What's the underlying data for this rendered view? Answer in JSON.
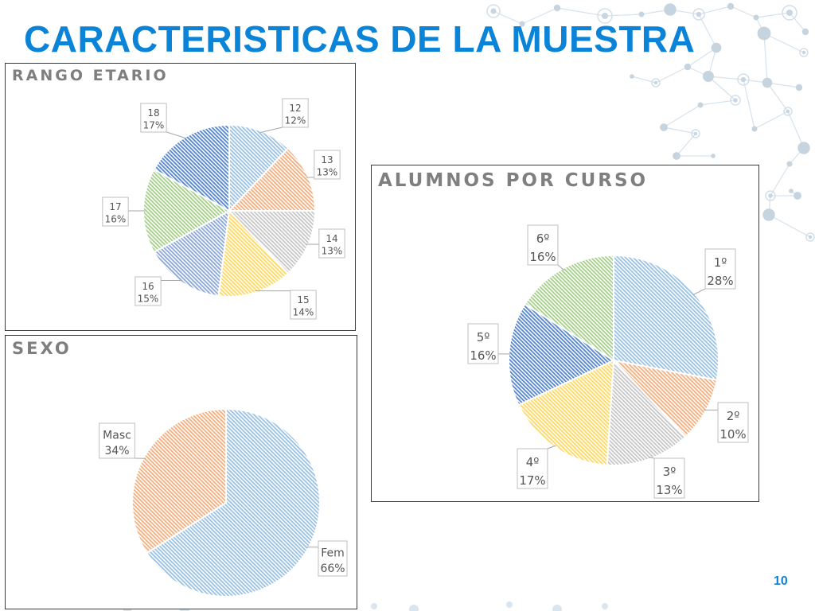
{
  "slide": {
    "title": "CARACTERISTICAS DE LA MUESTRA",
    "page_number": "10"
  },
  "chart_data": [
    {
      "id": "age",
      "type": "pie",
      "title": "RANGO ETARIO",
      "categories": [
        "12",
        "13",
        "14",
        "15",
        "16",
        "17",
        "18"
      ],
      "values": [
        12,
        13,
        13,
        14,
        15,
        16,
        17
      ],
      "value_labels": [
        "12%",
        "13%",
        "13%",
        "14%",
        "15%",
        "16%",
        "17%"
      ],
      "colors": [
        "#9dc3e6",
        "#f4b183",
        "#c9c9c9",
        "#ffd966",
        "#8faadc",
        "#a9d18e",
        "#5b8ad1"
      ],
      "fill": "diagonal-hatch",
      "data_labels": "callout"
    },
    {
      "id": "sex",
      "type": "pie",
      "title": "SEXO",
      "categories": [
        "Fem",
        "Masc"
      ],
      "values": [
        66,
        34
      ],
      "value_labels": [
        "66%",
        "34%"
      ],
      "colors": [
        "#9dc3e6",
        "#f4b183"
      ],
      "fill": "diagonal-hatch",
      "data_labels": "callout"
    },
    {
      "id": "course",
      "type": "pie",
      "title": "ALUMNOS POR CURSO",
      "categories": [
        "1º",
        "2º",
        "3º",
        "4º",
        "5º",
        "6º"
      ],
      "values": [
        28,
        10,
        13,
        17,
        16,
        16
      ],
      "value_labels": [
        "28%",
        "10%",
        "13%",
        "17%",
        "16%",
        "16%"
      ],
      "colors": [
        "#9dc3e6",
        "#f4b183",
        "#c9c9c9",
        "#ffd966",
        "#5b8ad1",
        "#a9d18e"
      ],
      "fill": "diagonal-hatch",
      "data_labels": "callout"
    }
  ]
}
